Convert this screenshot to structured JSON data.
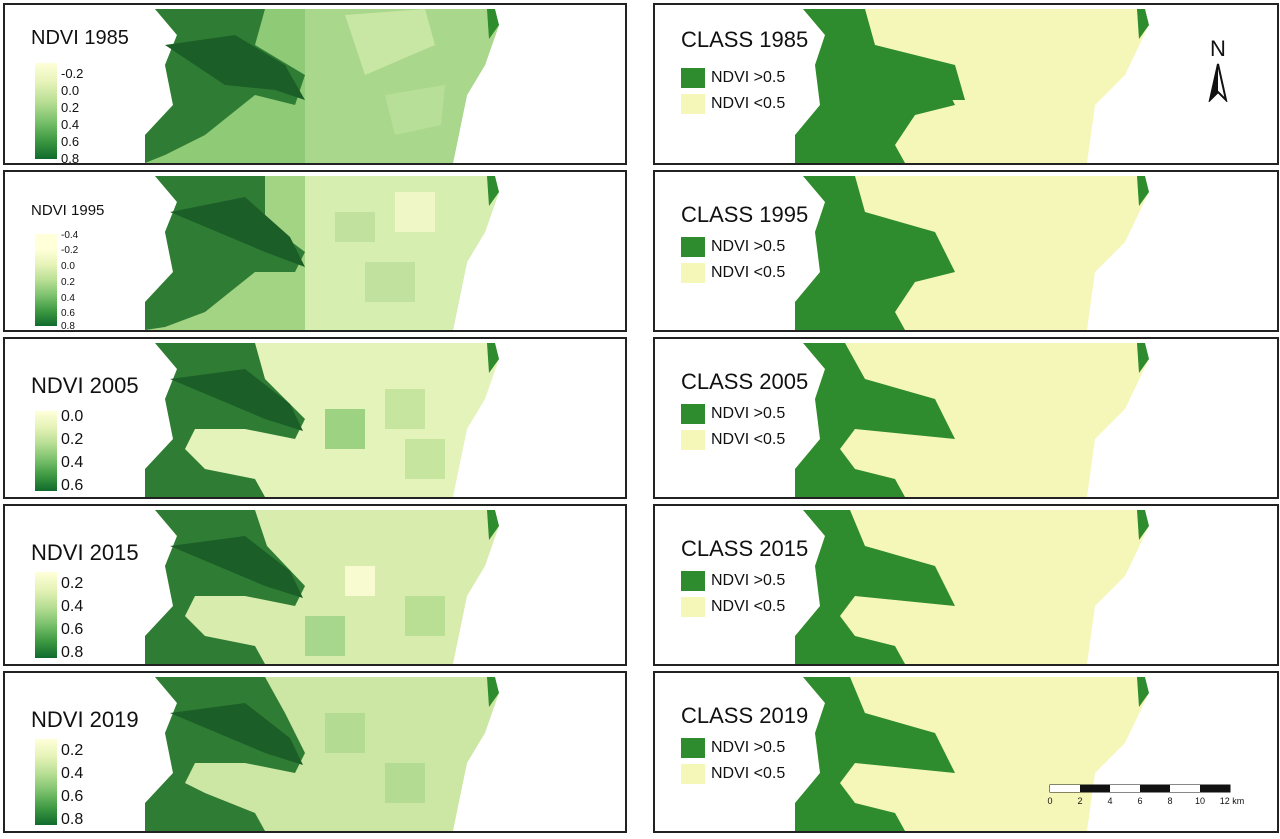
{
  "colors": {
    "forest": "#2e8b2e",
    "cleared": "#f4f7b8",
    "ndvi_ramp": [
      "#ffffd9",
      "#e6f3b8",
      "#b9df95",
      "#7dc26e",
      "#3f9a43",
      "#0f6b2c"
    ]
  },
  "ndvi_panels": [
    {
      "title": "NDVI 1985",
      "ticks": [
        "-0.2",
        "0.0",
        "0.2",
        "0.4",
        "0.6",
        "0.8"
      ]
    },
    {
      "title": "NDVI 1995",
      "ticks": [
        "-0.4",
        "-0.2",
        "0.0",
        "0.2",
        "0.4",
        "0.6",
        "0.8"
      ]
    },
    {
      "title": "NDVI 2005",
      "ticks": [
        "0.0",
        "0.2",
        "0.4",
        "0.6"
      ]
    },
    {
      "title": "NDVI 2015",
      "ticks": [
        "0.2",
        "0.4",
        "0.6",
        "0.8"
      ]
    },
    {
      "title": "NDVI 2019",
      "ticks": [
        "0.2",
        "0.4",
        "0.6",
        "0.8"
      ]
    }
  ],
  "class_panels": [
    {
      "title": "CLASS 1985",
      "legend": [
        "NDVI >0.5",
        "NDVI <0.5"
      ]
    },
    {
      "title": "CLASS 1995",
      "legend": [
        "NDVI >0.5",
        "NDVI <0.5"
      ]
    },
    {
      "title": "CLASS 2005",
      "legend": [
        "NDVI >0.5",
        "NDVI <0.5"
      ]
    },
    {
      "title": "CLASS 2015",
      "legend": [
        "NDVI >0.5",
        "NDVI <0.5"
      ]
    },
    {
      "title": "CLASS 2019",
      "legend": [
        "NDVI >0.5",
        "NDVI <0.5"
      ]
    }
  ],
  "north_arrow": {
    "label": "N",
    "icon": "north-arrow-icon"
  },
  "scale_bar": {
    "labels": [
      "0",
      "2",
      "4",
      "6",
      "8",
      "10",
      "12 km"
    ]
  }
}
